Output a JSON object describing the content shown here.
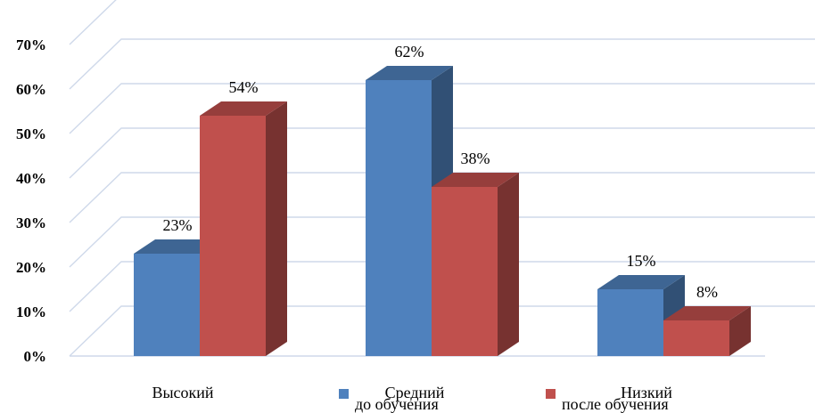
{
  "chart_data": {
    "type": "bar",
    "style": "3d-clustered-column",
    "categories": [
      "Высокий",
      "Средний",
      "Низкий"
    ],
    "series": [
      {
        "name": "до обучения",
        "values": [
          23,
          62,
          15
        ],
        "labels": [
          "23%",
          "62%",
          "15%"
        ],
        "color": "#4f81bd"
      },
      {
        "name": "после обучения",
        "values": [
          54,
          38,
          8
        ],
        "labels": [
          "54%",
          "38%",
          "8%"
        ],
        "color": "#c0504d"
      }
    ],
    "ylim": [
      0,
      70
    ],
    "yticks": [
      "0%",
      "10%",
      "20%",
      "30%",
      "40%",
      "50%",
      "60%",
      "70%"
    ],
    "grid": true,
    "legend": "bottom"
  }
}
